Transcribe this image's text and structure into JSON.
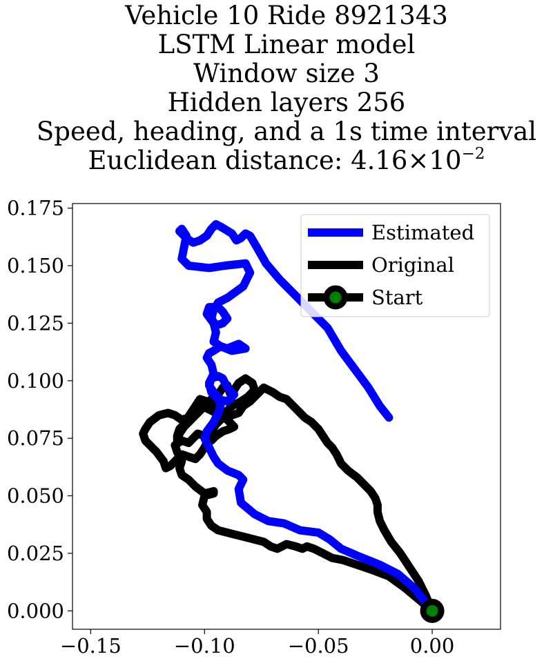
{
  "chart_data": {
    "type": "line",
    "title_lines": [
      "Vehicle 10 Ride 8921343",
      "LSTM Linear model",
      "Window size 3",
      "Hidden layers 256",
      "Speed, heading, and a 1s time interval"
    ],
    "distance_label": "Euclidean distance: 4.16",
    "distance_times": "×",
    "distance_base": "10",
    "distance_exponent": "−2",
    "xlim": [
      -0.158,
      0.03
    ],
    "ylim": [
      -0.008,
      0.177
    ],
    "xticks": [
      -0.15,
      -0.1,
      -0.05,
      0.0
    ],
    "xtick_labels": [
      "−0.15",
      "−0.10",
      "−0.05",
      "0.00"
    ],
    "yticks": [
      0.0,
      0.025,
      0.05,
      0.075,
      0.1,
      0.125,
      0.15,
      0.175
    ],
    "ytick_labels": [
      "0.000",
      "0.025",
      "0.050",
      "0.075",
      "0.100",
      "0.125",
      "0.150",
      "0.175"
    ],
    "legend_position": "upper right",
    "series": [
      {
        "name": "Estimated",
        "color": "#0000ff",
        "x": [
          0.0,
          -0.008,
          -0.015,
          -0.023,
          -0.033,
          -0.04,
          -0.045,
          -0.05,
          -0.058,
          -0.065,
          -0.072,
          -0.078,
          -0.084,
          -0.085,
          -0.083,
          -0.085,
          -0.09,
          -0.094,
          -0.096,
          -0.098,
          -0.1,
          -0.099,
          -0.096,
          -0.094,
          -0.093,
          -0.094,
          -0.096,
          -0.098,
          -0.097,
          -0.094,
          -0.092,
          -0.09,
          -0.087,
          -0.09,
          -0.094,
          -0.097,
          -0.098,
          -0.096,
          -0.097,
          -0.099,
          -0.098,
          -0.096,
          -0.093,
          -0.09,
          -0.085,
          -0.082,
          -0.088,
          -0.093,
          -0.096,
          -0.095,
          -0.096,
          -0.099,
          -0.098,
          -0.094,
          -0.092,
          -0.09,
          -0.092,
          -0.095,
          -0.097,
          -0.096,
          -0.094,
          -0.09,
          -0.083,
          -0.08,
          -0.082,
          -0.091,
          -0.098,
          -0.107,
          -0.11,
          -0.109,
          -0.108,
          -0.11,
          -0.111,
          -0.108,
          -0.105,
          -0.102,
          -0.099,
          -0.097,
          -0.095,
          -0.093,
          -0.088,
          -0.086,
          -0.084,
          -0.082,
          -0.08,
          -0.077,
          -0.073,
          -0.067,
          -0.06,
          -0.053,
          -0.046,
          -0.04,
          -0.034,
          -0.028,
          -0.023,
          -0.019
        ],
        "y": [
          0.0,
          0.01,
          0.016,
          0.02,
          0.024,
          0.027,
          0.031,
          0.034,
          0.035,
          0.038,
          0.039,
          0.042,
          0.047,
          0.053,
          0.057,
          0.059,
          0.061,
          0.064,
          0.067,
          0.071,
          0.075,
          0.078,
          0.082,
          0.086,
          0.089,
          0.093,
          0.095,
          0.098,
          0.101,
          0.102,
          0.101,
          0.097,
          0.094,
          0.091,
          0.092,
          0.095,
          0.099,
          0.103,
          0.107,
          0.11,
          0.112,
          0.113,
          0.115,
          0.114,
          0.116,
          0.114,
          0.113,
          0.115,
          0.117,
          0.121,
          0.125,
          0.129,
          0.132,
          0.132,
          0.13,
          0.127,
          0.125,
          0.124,
          0.127,
          0.131,
          0.134,
          0.136,
          0.141,
          0.147,
          0.151,
          0.15,
          0.149,
          0.15,
          0.153,
          0.158,
          0.163,
          0.166,
          0.165,
          0.162,
          0.16,
          0.161,
          0.163,
          0.166,
          0.168,
          0.167,
          0.164,
          0.161,
          0.162,
          0.164,
          0.163,
          0.158,
          0.151,
          0.144,
          0.137,
          0.13,
          0.123,
          0.113,
          0.105,
          0.097,
          0.089,
          0.084
        ]
      },
      {
        "name": "Original",
        "color": "#000000",
        "x": [
          0.0,
          -0.006,
          -0.012,
          -0.019,
          -0.027,
          -0.033,
          -0.039,
          -0.044,
          -0.048,
          -0.052,
          -0.055,
          -0.057,
          -0.06,
          -0.064,
          -0.068,
          -0.071,
          -0.074,
          -0.078,
          -0.082,
          -0.086,
          -0.09,
          -0.094,
          -0.097,
          -0.099,
          -0.099,
          -0.101,
          -0.1,
          -0.096,
          -0.096,
          -0.1,
          -0.104,
          -0.107,
          -0.11,
          -0.111,
          -0.11,
          -0.112,
          -0.113,
          -0.11,
          -0.107,
          -0.105,
          -0.103,
          -0.1,
          -0.097,
          -0.095,
          -0.092,
          -0.089,
          -0.087,
          -0.09,
          -0.095,
          -0.099,
          -0.102,
          -0.104,
          -0.107,
          -0.11,
          -0.113,
          -0.116,
          -0.12,
          -0.124,
          -0.126,
          -0.127,
          -0.126,
          -0.124,
          -0.121,
          -0.118,
          -0.117,
          -0.115,
          -0.112,
          -0.11,
          -0.107,
          -0.104,
          -0.102,
          -0.1,
          -0.098,
          -0.097,
          -0.095,
          -0.092,
          -0.093,
          -0.096,
          -0.099,
          -0.102,
          -0.104,
          -0.106,
          -0.108,
          -0.109,
          -0.111,
          -0.112,
          -0.112,
          -0.111,
          -0.109,
          -0.106,
          -0.103,
          -0.1,
          -0.097,
          -0.094,
          -0.092,
          -0.09,
          -0.089,
          -0.088,
          -0.087,
          -0.085,
          -0.082,
          -0.079,
          -0.078,
          -0.081,
          -0.084,
          -0.088,
          -0.09,
          -0.088,
          -0.085,
          -0.083,
          -0.08,
          -0.077,
          -0.074,
          -0.07,
          -0.067,
          -0.064,
          -0.062,
          -0.06,
          -0.058,
          -0.056,
          -0.053,
          -0.05,
          -0.048,
          -0.046,
          -0.044,
          -0.042,
          -0.04,
          -0.037,
          -0.033,
          -0.03,
          -0.027,
          -0.025,
          -0.024,
          -0.024,
          -0.023,
          -0.021,
          -0.018,
          -0.014,
          -0.01,
          -0.006,
          -0.003,
          0.0
        ],
        "y": [
          0.0,
          0.005,
          0.01,
          0.015,
          0.018,
          0.02,
          0.022,
          0.023,
          0.025,
          0.027,
          0.028,
          0.027,
          0.028,
          0.029,
          0.027,
          0.028,
          0.03,
          0.031,
          0.032,
          0.033,
          0.034,
          0.035,
          0.037,
          0.04,
          0.043,
          0.046,
          0.05,
          0.051,
          0.052,
          0.051,
          0.054,
          0.057,
          0.059,
          0.062,
          0.065,
          0.069,
          0.072,
          0.074,
          0.073,
          0.075,
          0.077,
          0.076,
          0.074,
          0.076,
          0.078,
          0.079,
          0.08,
          0.083,
          0.086,
          0.088,
          0.09,
          0.088,
          0.084,
          0.083,
          0.085,
          0.086,
          0.085,
          0.082,
          0.079,
          0.077,
          0.074,
          0.072,
          0.069,
          0.065,
          0.062,
          0.063,
          0.066,
          0.068,
          0.067,
          0.066,
          0.068,
          0.071,
          0.075,
          0.078,
          0.081,
          0.084,
          0.087,
          0.089,
          0.091,
          0.092,
          0.089,
          0.086,
          0.083,
          0.081,
          0.079,
          0.076,
          0.074,
          0.077,
          0.08,
          0.083,
          0.086,
          0.089,
          0.092,
          0.094,
          0.097,
          0.098,
          0.095,
          0.093,
          0.096,
          0.099,
          0.101,
          0.099,
          0.096,
          0.093,
          0.091,
          0.089,
          0.087,
          0.085,
          0.086,
          0.089,
          0.091,
          0.094,
          0.097,
          0.095,
          0.093,
          0.092,
          0.09,
          0.088,
          0.086,
          0.084,
          0.082,
          0.079,
          0.076,
          0.073,
          0.071,
          0.068,
          0.064,
          0.061,
          0.058,
          0.055,
          0.052,
          0.049,
          0.046,
          0.043,
          0.039,
          0.035,
          0.03,
          0.025,
          0.019,
          0.013,
          0.007,
          0.0
        ]
      }
    ],
    "start_marker": {
      "name": "Start",
      "x": 0.0,
      "y": 0.0,
      "edge_color": "#000000",
      "face_color": "#008000"
    }
  }
}
